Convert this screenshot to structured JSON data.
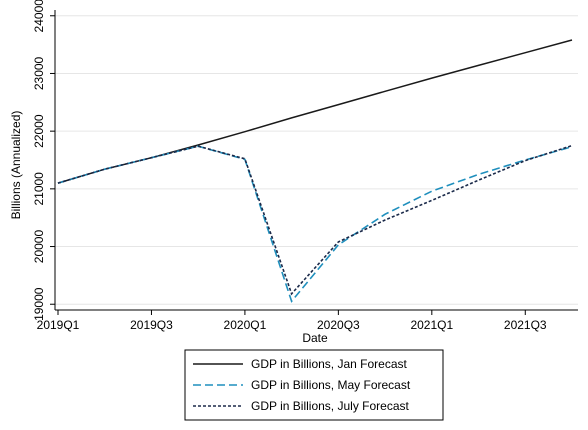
{
  "chart_data": {
    "type": "line",
    "xlabel": "Date",
    "ylabel": "Billions (Annualized)",
    "x": [
      "2019Q1",
      "2019Q2",
      "2019Q3",
      "2019Q4",
      "2020Q1",
      "2020Q2",
      "2020Q3",
      "2020Q4",
      "2021Q1",
      "2021Q2",
      "2021Q3",
      "2021Q4"
    ],
    "x_ticks": [
      "2019Q1",
      "2019Q3",
      "2020Q1",
      "2020Q3",
      "2021Q1",
      "2021Q3"
    ],
    "y_ticks": [
      19000,
      20000,
      21000,
      22000,
      23000,
      24000
    ],
    "ylim": [
      18900,
      24100
    ],
    "grid": "horizontal",
    "legend_position": "bottom",
    "series": [
      {
        "name": "GDP in Billions, Jan Forecast",
        "style": "solid",
        "color": "#1a1a1a",
        "values": [
          21100,
          21340,
          21540,
          21760,
          21990,
          22230,
          22460,
          22690,
          22920,
          23140,
          23360,
          23580
        ]
      },
      {
        "name": "GDP in Billions, May Forecast",
        "style": "dashed",
        "color": "#1f8fbd",
        "values": [
          21100,
          21340,
          21540,
          21740,
          21510,
          19050,
          20030,
          20560,
          20960,
          21250,
          21500,
          21730
        ]
      },
      {
        "name": "GDP in Billions, July Forecast",
        "style": "dotted",
        "color": "#1b2a4a",
        "values": [
          21100,
          21340,
          21540,
          21740,
          21520,
          19180,
          20080,
          20460,
          20800,
          21150,
          21490,
          21750
        ]
      }
    ]
  }
}
